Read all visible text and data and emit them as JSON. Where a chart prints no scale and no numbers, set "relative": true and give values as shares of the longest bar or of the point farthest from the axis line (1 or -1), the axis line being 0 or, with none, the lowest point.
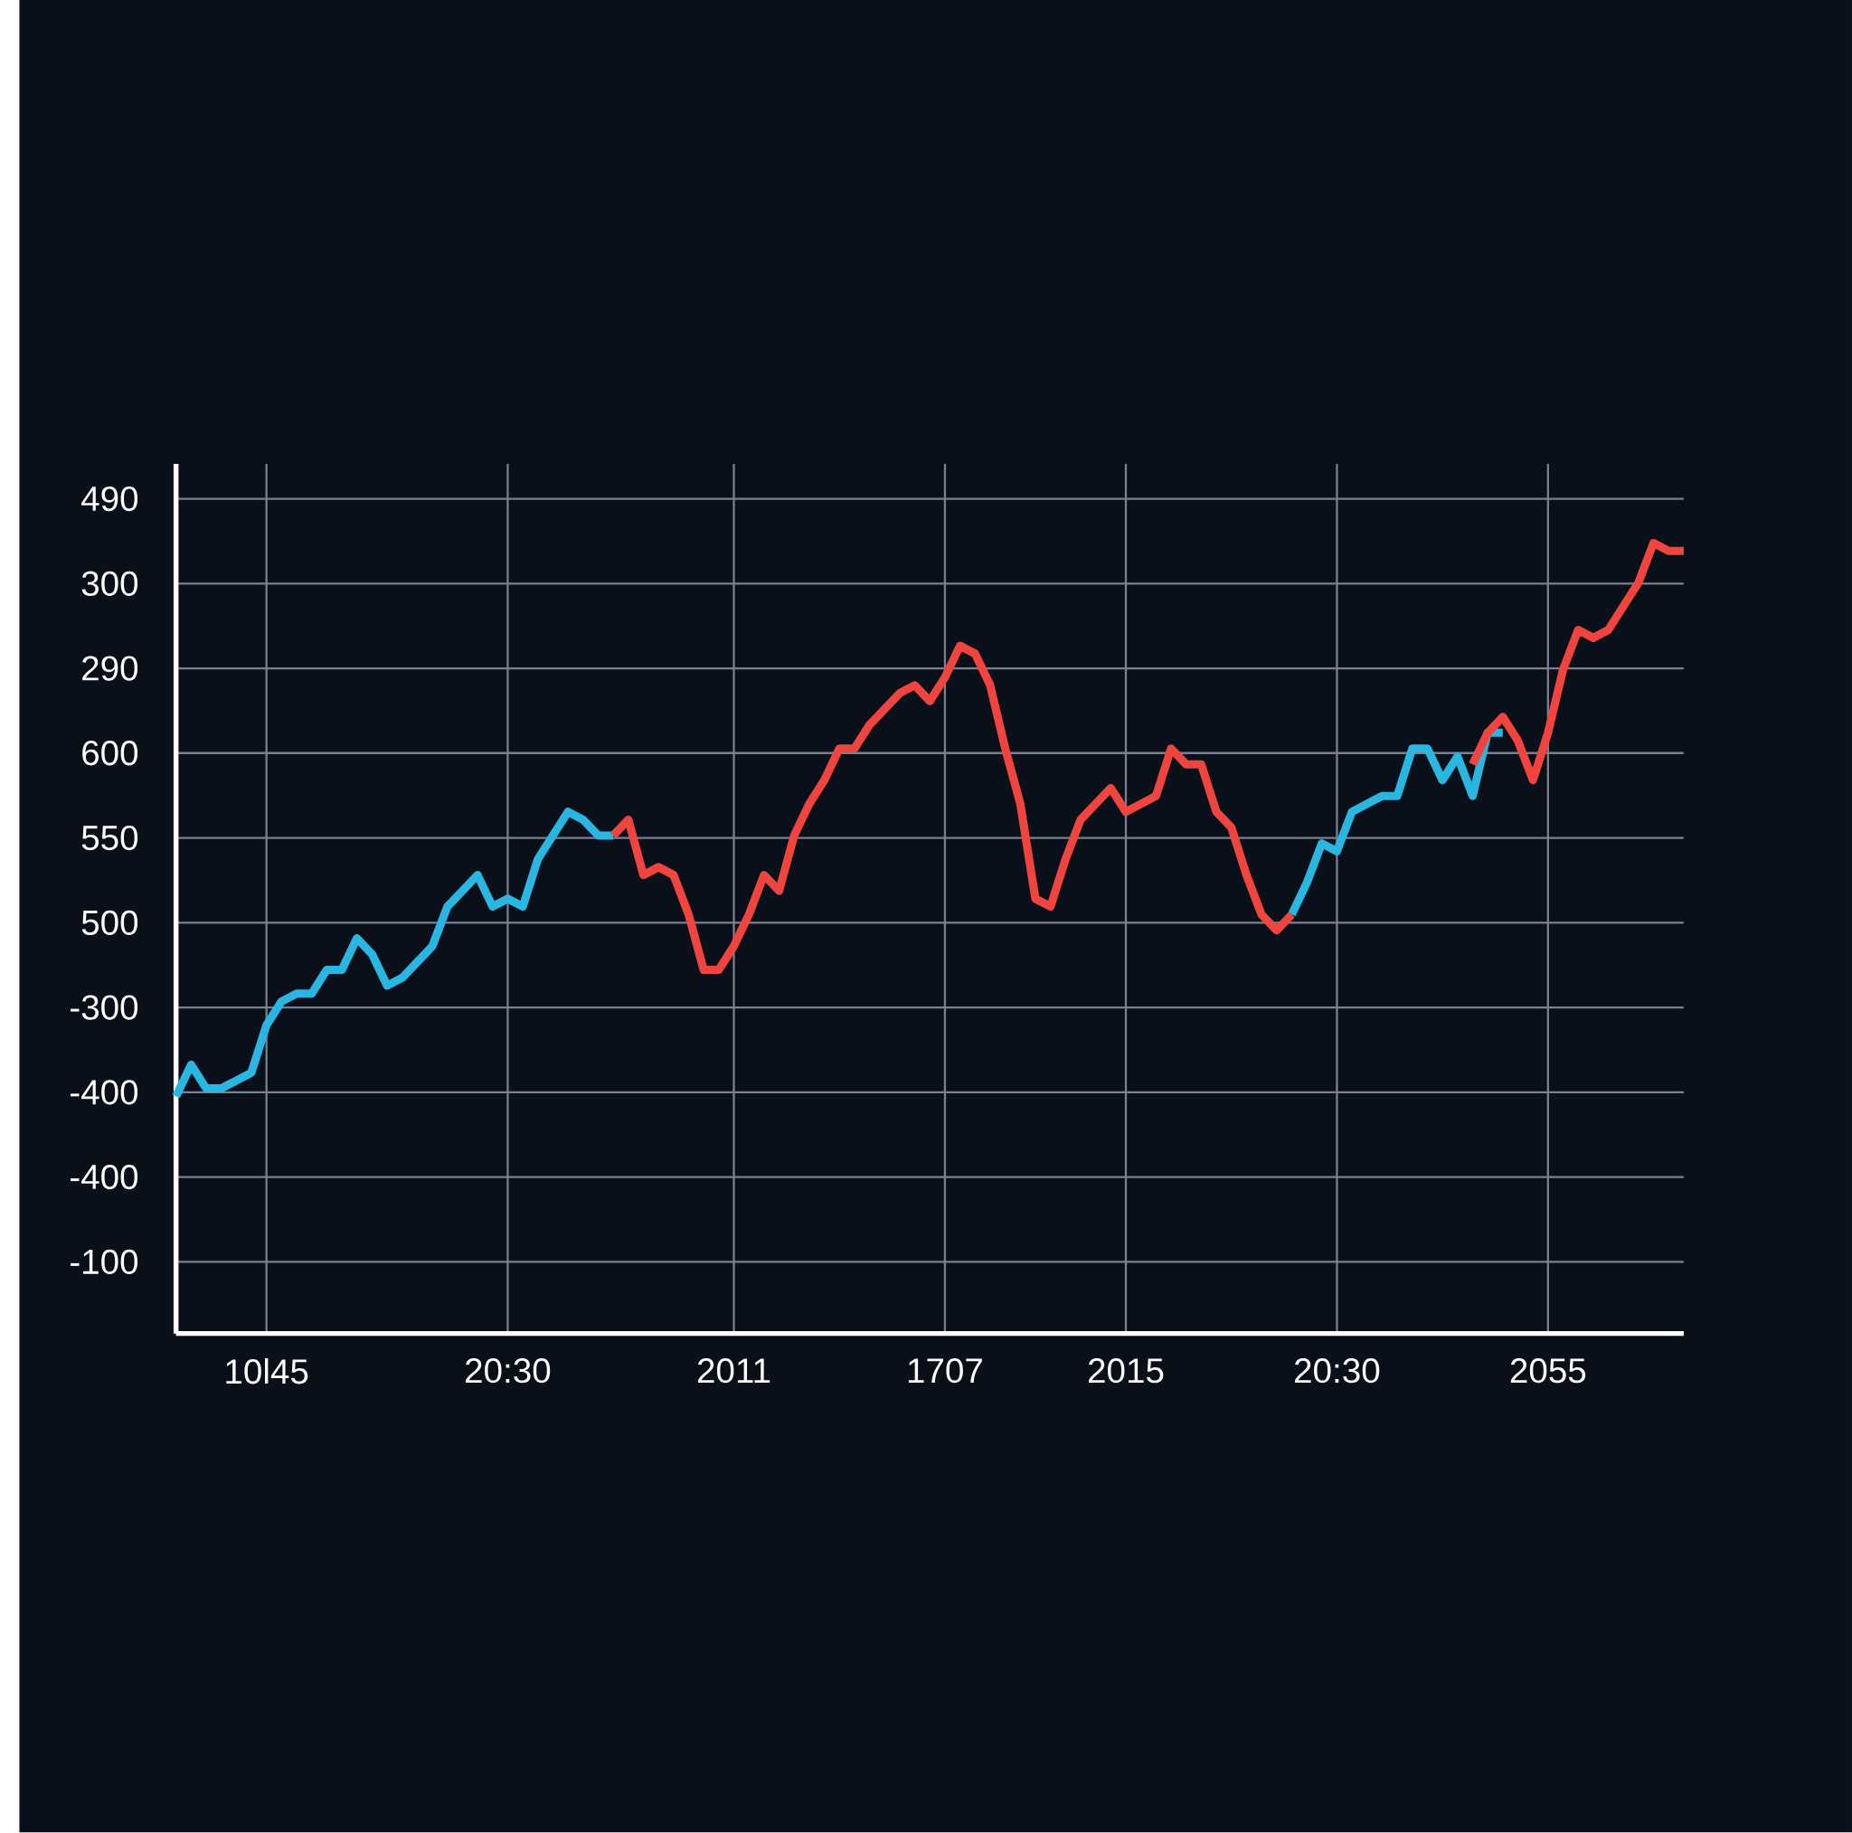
{
  "chart_data": {
    "type": "line",
    "relative": true,
    "grid": true,
    "marker": "none",
    "line_style": "solid",
    "categories": [
      null,
      null,
      null,
      null,
      null,
      null,
      "10l45",
      null,
      null,
      null,
      null,
      null,
      null,
      null,
      null,
      null,
      null,
      null,
      null,
      null,
      null,
      null,
      "20:30",
      null,
      null,
      null,
      null,
      null,
      null,
      null,
      null,
      null,
      null,
      null,
      null,
      null,
      null,
      "2011",
      null,
      null,
      null,
      null,
      null,
      null,
      null,
      null,
      null,
      null,
      null,
      null,
      null,
      "1707",
      null,
      null,
      null,
      null,
      null,
      null,
      null,
      null,
      null,
      null,
      null,
      "2015",
      null,
      null,
      null,
      null,
      null,
      null,
      null,
      null,
      null,
      null,
      null,
      null,
      null,
      "20:30",
      null,
      null,
      null,
      null,
      null,
      null,
      null,
      null,
      null,
      null,
      null,
      null,
      null,
      "2055",
      null,
      null,
      null,
      null,
      null,
      null,
      null,
      null,
      null
    ],
    "annotations": [
      "490",
      "300",
      "290",
      "600",
      "550",
      "500",
      "-300",
      "-400",
      "-400",
      "-100"
    ],
    "series": [
      {
        "color": "#29b6e0",
        "values": [
          0.3,
          0.34,
          0.31,
          0.31,
          0.32,
          0.33,
          0.39,
          0.42,
          0.43,
          0.43,
          0.46,
          0.46,
          0.5,
          0.48,
          0.44,
          0.45,
          0.47,
          0.49,
          0.54,
          0.56,
          0.58,
          0.54,
          0.55,
          0.54,
          0.6,
          0.63,
          0.66,
          0.65,
          0.63,
          0.63,
          null,
          null,
          null,
          null,
          null,
          null,
          null,
          null,
          null,
          null,
          null,
          null,
          null,
          null,
          null,
          null,
          null,
          null,
          null,
          null,
          null,
          null,
          null,
          null,
          null,
          null,
          null,
          null,
          null,
          null,
          null,
          null,
          null,
          null,
          null,
          null,
          null,
          null,
          null,
          null,
          null,
          null,
          null,
          null,
          0.53,
          0.57,
          0.62,
          0.61,
          0.66,
          0.67,
          0.68,
          0.68,
          0.74,
          0.74,
          0.7,
          0.73,
          0.68,
          0.76,
          0.76,
          null,
          null,
          null,
          null,
          null,
          null,
          null,
          null,
          null,
          null,
          null,
          null
        ]
      },
      {
        "color": "#f0453f",
        "values": [
          null,
          null,
          null,
          null,
          null,
          null,
          null,
          null,
          null,
          null,
          null,
          null,
          null,
          null,
          null,
          null,
          null,
          null,
          null,
          null,
          null,
          null,
          null,
          null,
          null,
          null,
          null,
          null,
          null,
          0.63,
          0.65,
          0.58,
          0.59,
          0.58,
          0.53,
          0.46,
          0.46,
          0.49,
          0.53,
          0.58,
          0.56,
          0.63,
          0.67,
          0.7,
          0.74,
          0.74,
          0.77,
          0.79,
          0.81,
          0.82,
          0.8,
          0.83,
          0.87,
          0.86,
          0.82,
          0.74,
          0.67,
          0.55,
          0.54,
          0.6,
          0.65,
          0.67,
          0.69,
          0.66,
          0.67,
          0.68,
          0.74,
          0.72,
          0.72,
          0.66,
          0.64,
          0.58,
          0.53,
          0.51,
          0.53,
          null,
          null,
          null,
          null,
          null,
          null,
          null,
          null,
          null,
          null,
          null,
          0.72,
          0.76,
          0.78,
          0.75,
          0.7,
          0.76,
          0.84,
          0.89,
          0.88,
          0.89,
          0.92,
          0.95,
          1.0,
          0.99,
          0.99
        ]
      }
    ]
  }
}
